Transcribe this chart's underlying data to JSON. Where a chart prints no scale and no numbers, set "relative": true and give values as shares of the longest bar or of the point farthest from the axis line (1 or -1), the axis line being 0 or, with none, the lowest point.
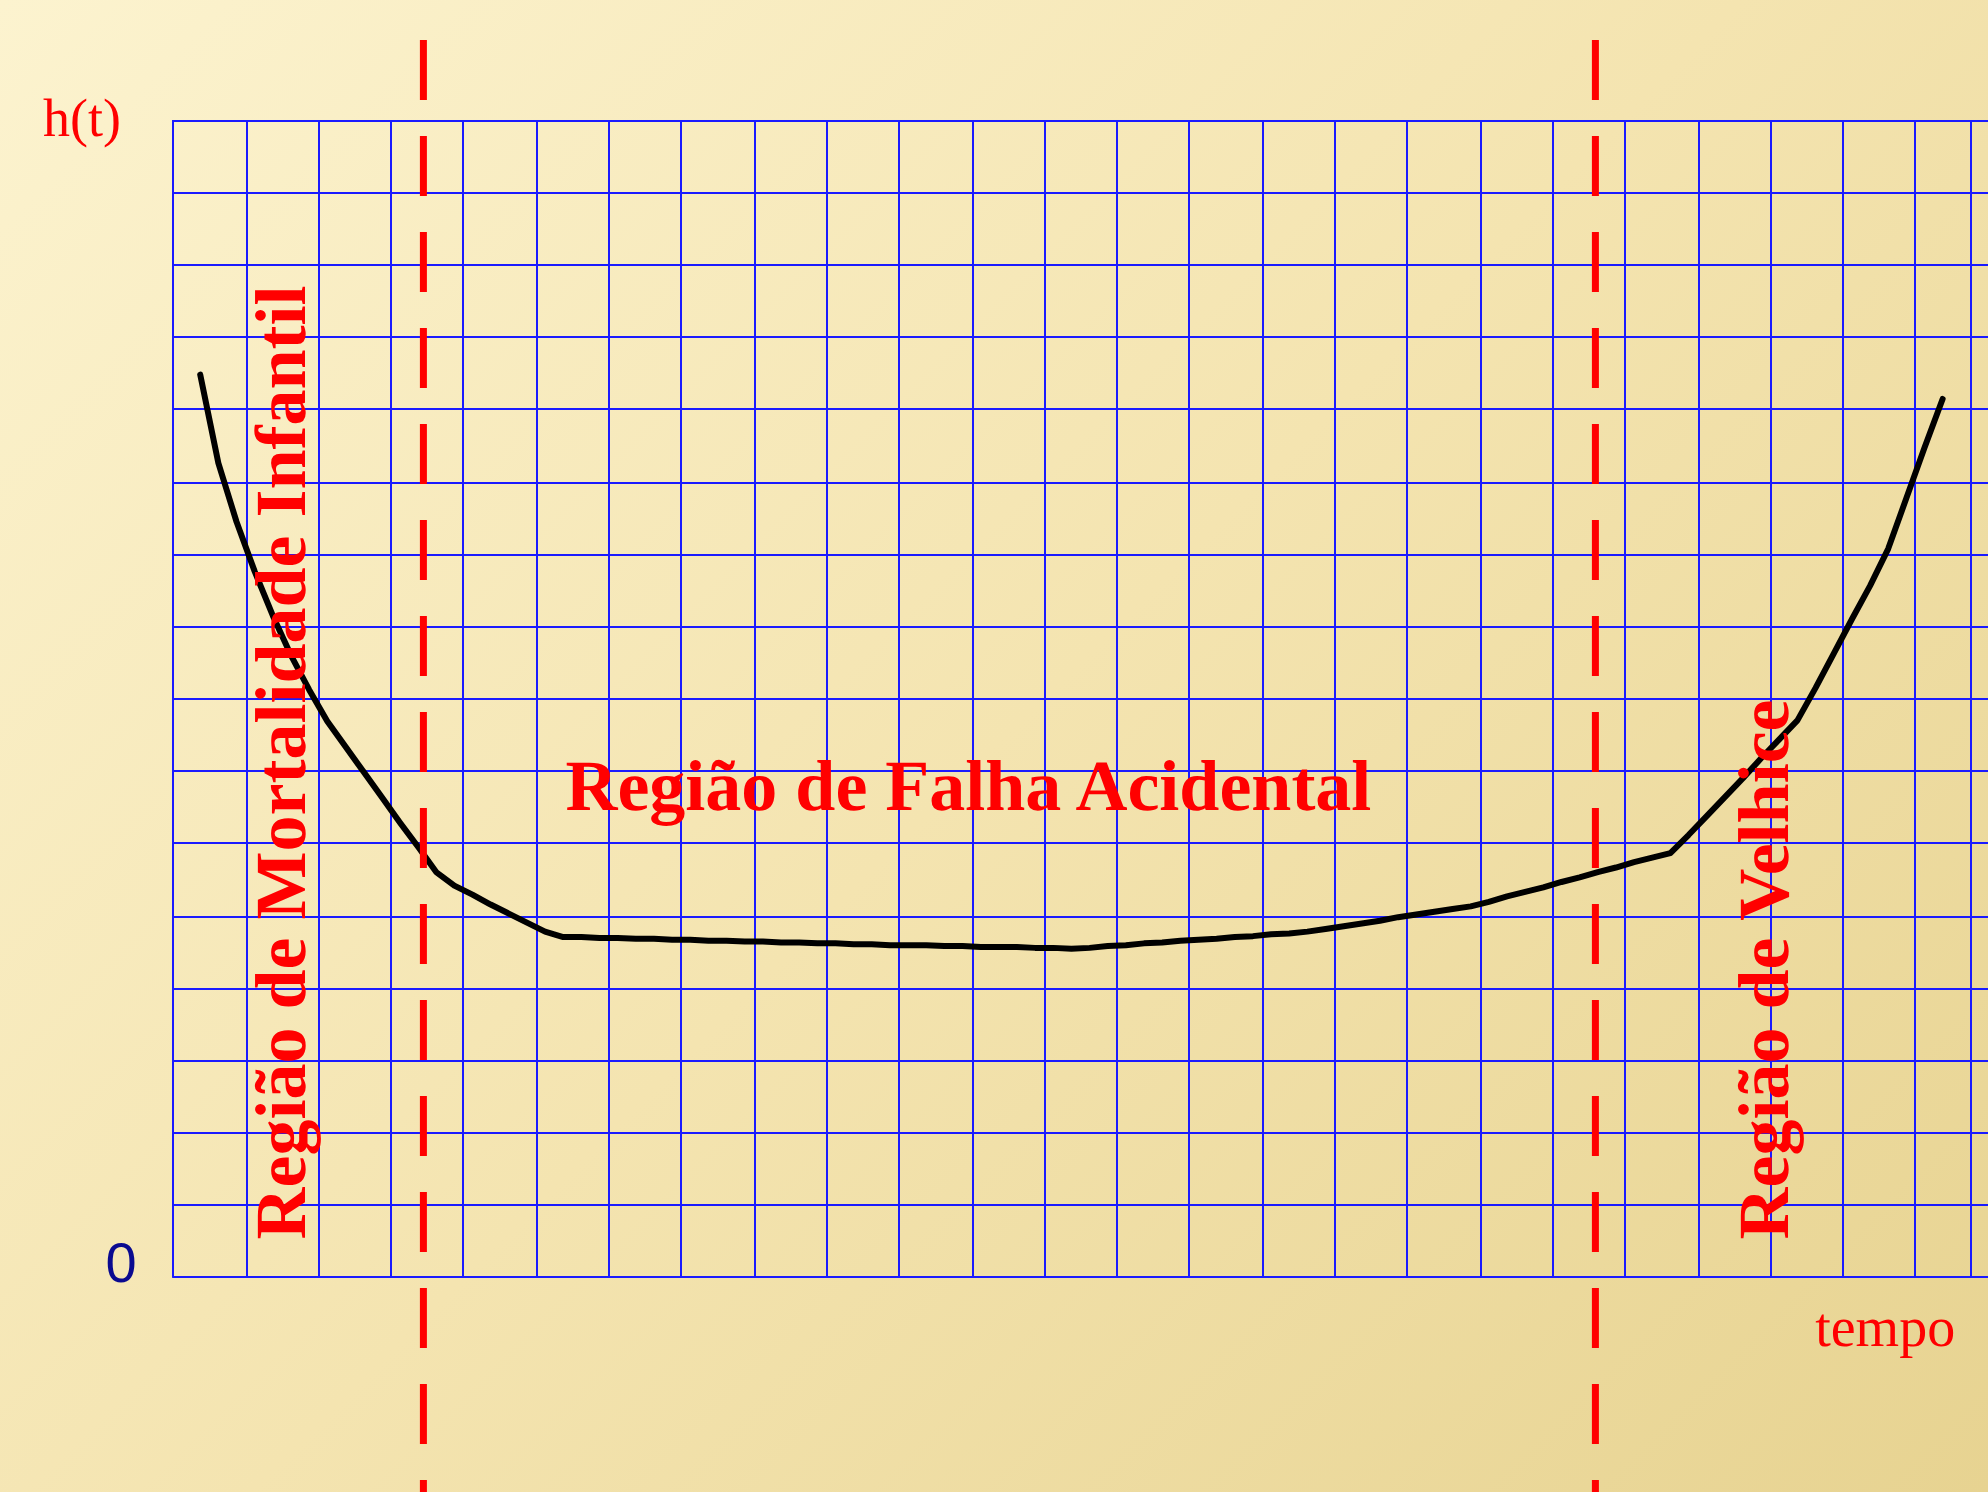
{
  "chart_data": {
    "type": "line",
    "xlabel": "tempo",
    "ylabel": "h(t)",
    "relative": true,
    "grid": true,
    "marker": "none",
    "line_style": "solid",
    "color": "#000000",
    "categories": [
      null,
      null,
      null,
      null,
      null,
      null,
      null,
      null,
      null,
      null,
      null,
      null,
      null,
      null,
      null,
      null,
      null,
      null,
      null,
      null,
      null,
      null,
      null,
      null,
      null,
      null,
      null,
      null,
      null,
      null,
      null,
      null,
      null,
      null,
      null,
      null,
      null,
      null,
      null,
      null,
      null,
      null,
      null,
      null,
      null,
      null,
      null,
      null,
      null,
      null,
      null,
      null,
      null,
      null,
      null,
      null,
      null,
      null,
      null,
      null,
      null,
      null,
      null,
      null,
      null,
      null,
      null,
      null,
      null,
      null,
      null,
      null,
      null,
      null,
      null,
      null,
      null,
      null,
      null,
      null,
      null,
      null,
      null,
      null,
      null,
      null,
      null,
      null,
      null,
      null,
      null,
      null,
      null,
      null,
      null,
      null,
      null,
      null,
      null,
      null
    ],
    "values": [
      null,
      1,
      0.902,
      0.837,
      0.782,
      0.733,
      0.689,
      0.651,
      0.616,
      0.588,
      0.56,
      0.532,
      0.504,
      0.477,
      0.449,
      0.434,
      0.424,
      0.413,
      0.403,
      0.393,
      0.383,
      0.377,
      0.377,
      0.376,
      0.376,
      0.375,
      0.375,
      0.374,
      0.374,
      0.373,
      0.373,
      0.372,
      0.372,
      0.371,
      0.371,
      0.37,
      0.37,
      0.369,
      0.369,
      0.368,
      0.368,
      0.368,
      0.367,
      0.367,
      0.366,
      0.366,
      0.366,
      0.365,
      0.365,
      0.364,
      0.365,
      0.367,
      0.368,
      0.37,
      0.371,
      0.373,
      0.374,
      0.375,
      0.377,
      0.378,
      0.38,
      0.381,
      0.383,
      0.386,
      0.389,
      0.392,
      0.395,
      0.399,
      0.402,
      0.405,
      0.408,
      0.411,
      0.416,
      0.422,
      0.427,
      0.432,
      0.438,
      0.443,
      0.449,
      0.454,
      0.46,
      0.465,
      0.47,
      0.49,
      0.511,
      0.532,
      0.553,
      0.575,
      0.596,
      0.617,
      0.653,
      0.691,
      0.729,
      0.766,
      0.807,
      0.863,
      0.919,
      0.973,
      null,
      null
    ],
    "annotations": [
      "0",
      "Região de Mortalidade Infantil",
      "Região de Falha Acidental",
      "Região de Velhice"
    ]
  }
}
